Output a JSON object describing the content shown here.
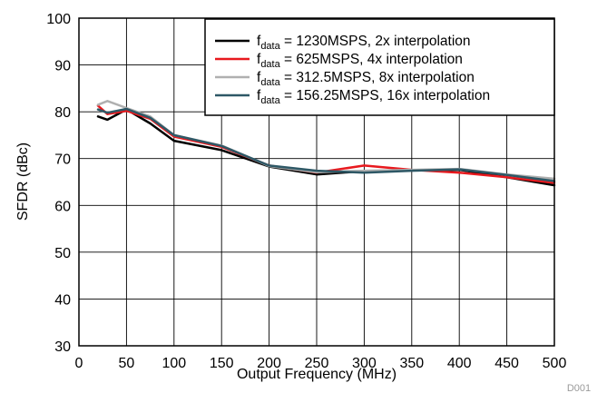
{
  "chart_data": {
    "type": "line",
    "xlabel": "Output Frequency (MHz)",
    "ylabel": "SFDR (dBc)",
    "xlim": [
      0,
      500
    ],
    "ylim": [
      30,
      100
    ],
    "xticks": [
      0,
      50,
      100,
      150,
      200,
      250,
      300,
      350,
      400,
      450,
      500
    ],
    "yticks": [
      30,
      40,
      50,
      60,
      70,
      80,
      90,
      100
    ],
    "grid": true,
    "legend_position": "top-right",
    "note": "D001",
    "series": [
      {
        "name_main": "f",
        "name_sub": "data",
        "name_rest": " = 1230MSPS, 2x interpolation",
        "color": "#000000",
        "x": [
          20,
          30,
          50,
          75,
          100,
          150,
          200,
          250,
          300,
          350,
          400,
          450,
          500
        ],
        "y": [
          79,
          78.3,
          80.5,
          77.5,
          73.8,
          71.8,
          68.3,
          66.6,
          67.3,
          67.5,
          67.6,
          66.0,
          64.3
        ]
      },
      {
        "name_main": "f",
        "name_sub": "data",
        "name_rest": " = 625MSPS, 4x interpolation",
        "color": "#e8191e",
        "x": [
          20,
          30,
          50,
          75,
          100,
          150,
          200,
          250,
          300,
          350,
          400,
          450,
          500
        ],
        "y": [
          81.3,
          79.5,
          80.2,
          78.5,
          74.7,
          72.5,
          68.5,
          67.0,
          68.5,
          67.6,
          67.0,
          66.0,
          64.8
        ]
      },
      {
        "name_main": "f",
        "name_sub": "data",
        "name_rest": " = 312.5MSPS, 8x interpolation",
        "color": "#b0b0b0",
        "x": [
          20,
          30,
          50,
          75,
          100,
          150,
          200,
          250,
          300,
          350,
          400,
          450,
          500
        ],
        "y": [
          81.5,
          82.3,
          80.8,
          79.0,
          75.0,
          72.8,
          68.4,
          67.1,
          67.4,
          67.6,
          67.8,
          66.6,
          65.7
        ]
      },
      {
        "name_main": "f",
        "name_sub": "data",
        "name_rest": " = 156.25MSPS, 16x interpolation",
        "color": "#2e5866",
        "x": [
          20,
          30,
          50,
          75,
          100,
          150,
          200,
          250,
          300,
          350,
          400,
          450,
          500
        ],
        "y": [
          80.5,
          79.8,
          80.6,
          78.7,
          75.0,
          72.7,
          68.5,
          67.4,
          67.0,
          67.4,
          67.7,
          66.5,
          65.2
        ]
      }
    ]
  }
}
